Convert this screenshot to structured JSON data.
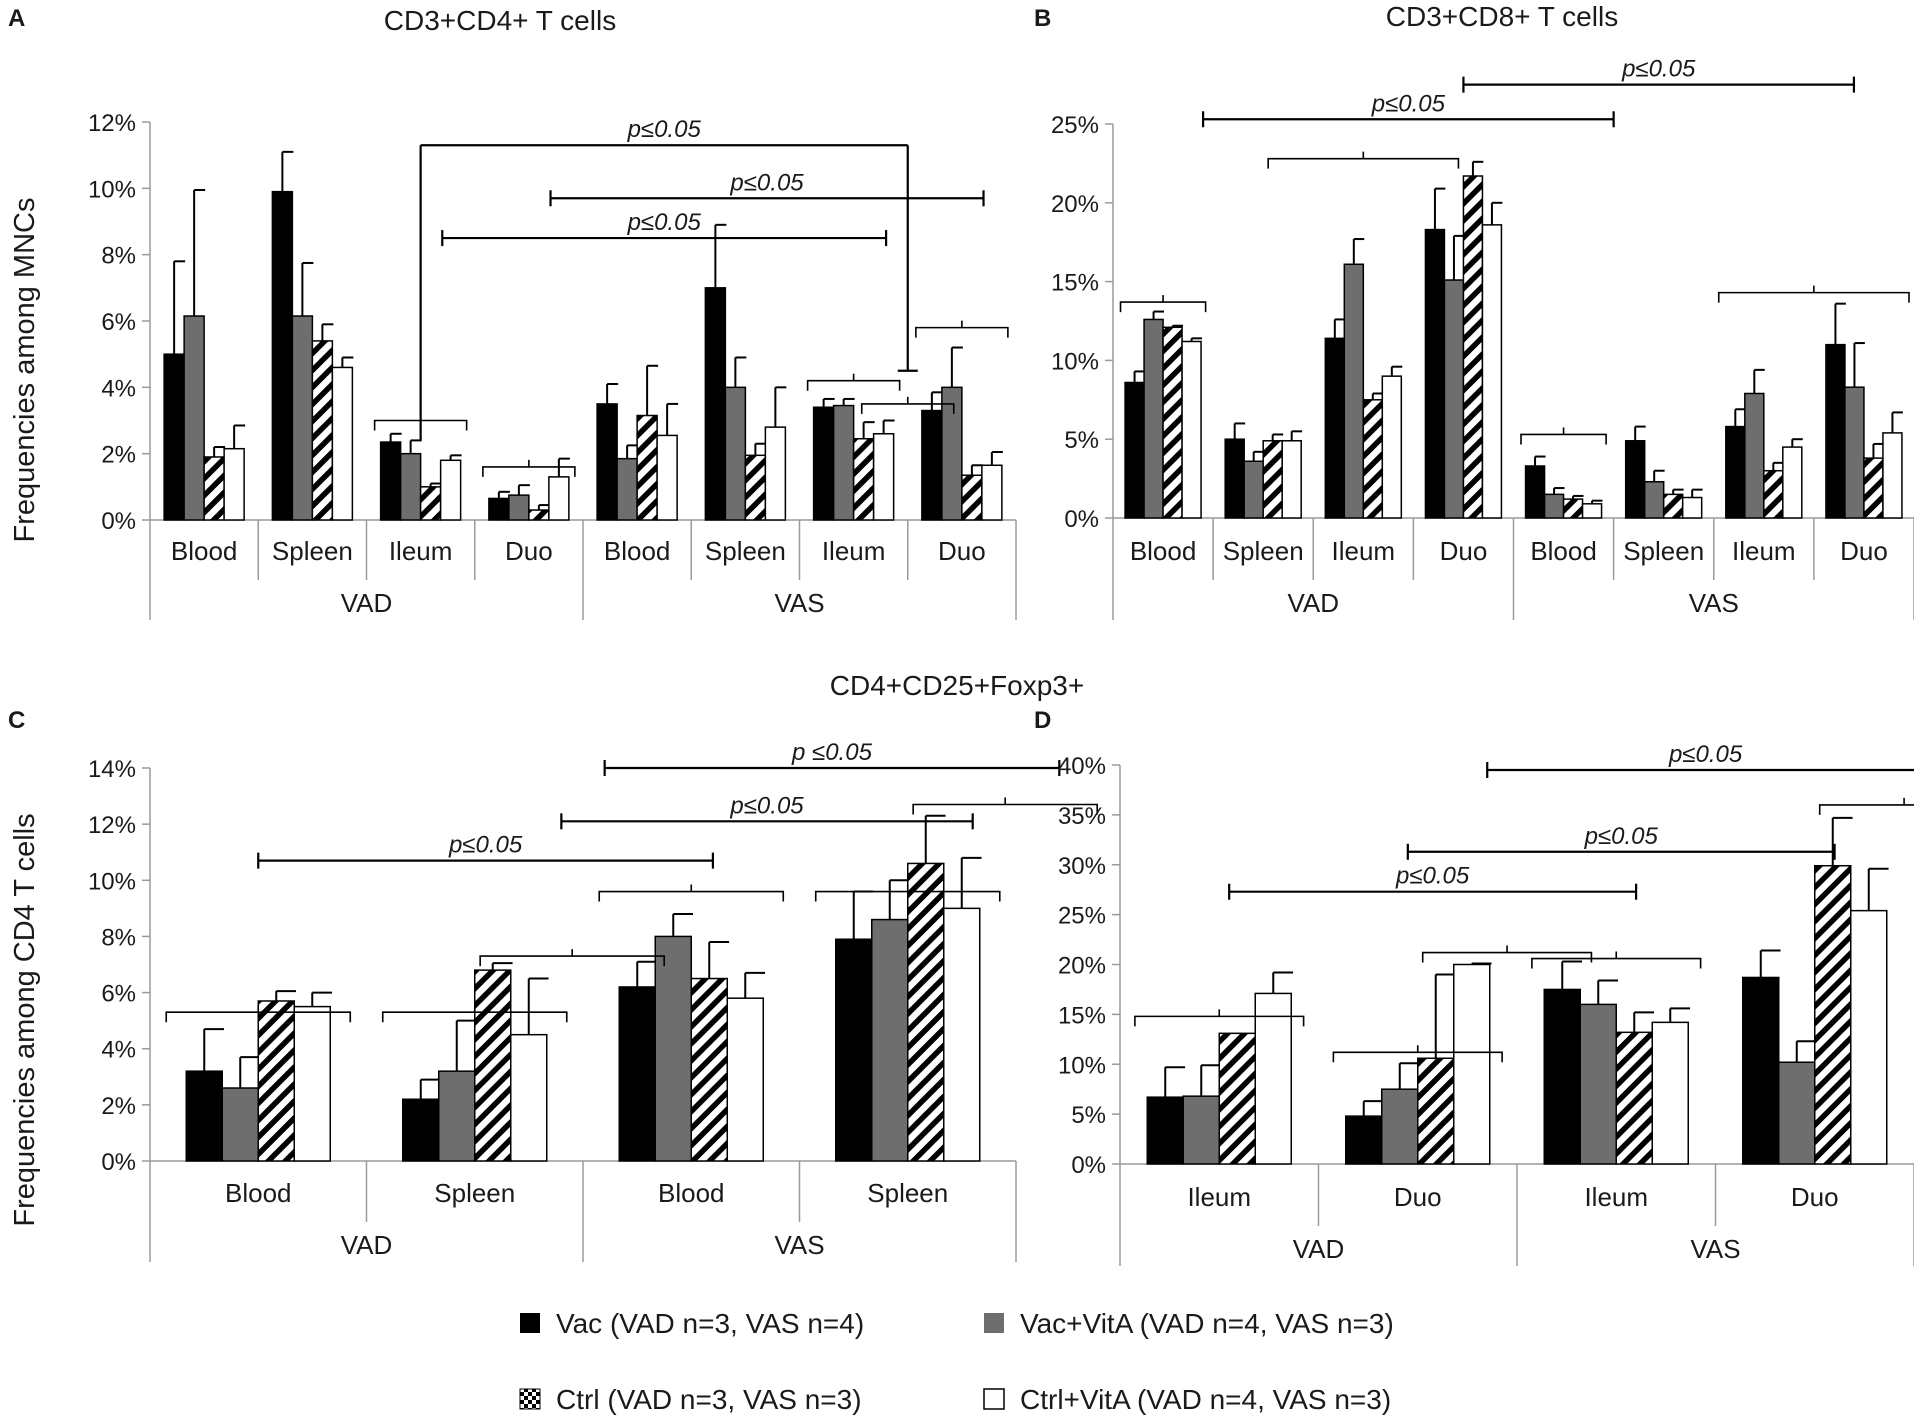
{
  "figure_title": "CD4+CD25+Foxp3+",
  "series_names": [
    "Vac",
    "Vac+VitA",
    "Ctrl",
    "Ctrl+VitA"
  ],
  "colors": {
    "vac": "#000000",
    "vac_vita": "#6e6e6e",
    "ctrl_fill": "#ffffff",
    "ctrl_stripe": "#000000",
    "ctrl_vita": "#ffffff",
    "axis": "#9a9a9a",
    "ink": "#1a1a1a"
  },
  "legend": [
    {
      "label": "Vac  (VAD n=3, VAS n=4)",
      "icon": "solid-black-square"
    },
    {
      "label": "Vac+VitA (VAD n=4, VAS n=3)",
      "icon": "solid-gray-square"
    },
    {
      "label": "Ctrl (VAD n=3, VAS n=3)",
      "icon": "checkered-square"
    },
    {
      "label": "Ctrl+VitA (VAD n=4, VAS n=3)",
      "icon": "open-white-square"
    }
  ],
  "chart_data": [
    {
      "panel": "A",
      "type": "bar",
      "title": "CD3+CD4+ T cells",
      "ylabel": "Frequencies among MNCs",
      "ylim": [
        0,
        12
      ],
      "yticks": [
        0,
        2,
        4,
        6,
        8,
        10,
        12
      ],
      "tick_labels": [
        "0%",
        "2%",
        "4%",
        "6%",
        "8%",
        "10%",
        "12%"
      ],
      "categories": [
        "Blood",
        "Spleen",
        "Ileum",
        "Duo",
        "Blood",
        "Spleen",
        "Ileum",
        "Duo"
      ],
      "groups": [
        "VAD",
        "VAS"
      ],
      "series": [
        {
          "name": "Vac",
          "values": [
            5.0,
            9.9,
            2.35,
            0.65,
            3.5,
            7.0,
            3.4,
            3.3
          ],
          "errors": [
            2.8,
            1.2,
            0.25,
            0.2,
            0.6,
            1.9,
            0.25,
            0.55
          ]
        },
        {
          "name": "Vac+VitA",
          "values": [
            6.15,
            6.15,
            2.0,
            0.75,
            1.85,
            4.0,
            3.45,
            4.0
          ],
          "errors": [
            3.8,
            1.6,
            0.4,
            0.3,
            0.4,
            0.9,
            0.2,
            1.2
          ]
        },
        {
          "name": "Ctrl",
          "values": [
            1.9,
            5.4,
            1.0,
            0.3,
            3.15,
            1.95,
            2.45,
            1.35
          ],
          "errors": [
            0.3,
            0.5,
            0.1,
            0.15,
            1.5,
            0.35,
            0.5,
            0.3
          ]
        },
        {
          "name": "Ctrl+VitA",
          "values": [
            2.15,
            4.6,
            1.8,
            1.3,
            2.55,
            2.8,
            2.6,
            1.65
          ],
          "errors": [
            0.7,
            0.3,
            0.15,
            0.55,
            0.95,
            1.2,
            0.4,
            0.4
          ]
        }
      ],
      "annotations": [
        "p≤0.05",
        "p≤0.05",
        "p≤0.05"
      ]
    },
    {
      "panel": "B",
      "type": "bar",
      "title": "CD3+CD8+ T cells",
      "ylabel": "",
      "ylim": [
        0,
        25
      ],
      "yticks": [
        0,
        5,
        10,
        15,
        20,
        25
      ],
      "tick_labels": [
        "0%",
        "5%",
        "10%",
        "15%",
        "20%",
        "25%"
      ],
      "categories": [
        "Blood",
        "Spleen",
        "Ileum",
        "Duo",
        "Blood",
        "Spleen",
        "Ileum",
        "Duo"
      ],
      "groups": [
        "VAD",
        "VAS"
      ],
      "series": [
        {
          "name": "Vac",
          "values": [
            8.6,
            5.0,
            11.4,
            18.3,
            3.3,
            4.9,
            5.8,
            11.0
          ],
          "errors": [
            0.7,
            1.0,
            1.2,
            2.6,
            0.6,
            0.9,
            1.1,
            2.6
          ]
        },
        {
          "name": "Vac+VitA",
          "values": [
            12.6,
            3.6,
            16.1,
            15.1,
            1.5,
            2.3,
            7.9,
            8.3
          ],
          "errors": [
            0.5,
            0.6,
            1.6,
            2.8,
            0.4,
            0.7,
            1.5,
            2.8
          ]
        },
        {
          "name": "Ctrl",
          "values": [
            12.1,
            4.9,
            7.5,
            21.7,
            1.2,
            1.5,
            3.0,
            3.8
          ],
          "errors": [
            0.1,
            0.4,
            0.4,
            0.9,
            0.2,
            0.3,
            0.5,
            0.9
          ]
        },
        {
          "name": "Ctrl+VitA",
          "values": [
            11.2,
            4.9,
            9.0,
            18.6,
            0.9,
            1.3,
            4.5,
            5.4
          ],
          "errors": [
            0.2,
            0.6,
            0.6,
            1.4,
            0.2,
            0.5,
            0.5,
            1.3
          ]
        }
      ],
      "annotations": [
        "p≤0.05",
        "p≤0.05"
      ]
    },
    {
      "panel": "C",
      "type": "bar",
      "title": "",
      "ylabel": "Frequencies among CD4 T cells",
      "ylim": [
        0,
        14
      ],
      "yticks": [
        0,
        2,
        4,
        6,
        8,
        10,
        12,
        14
      ],
      "tick_labels": [
        "0%",
        "2%",
        "4%",
        "6%",
        "8%",
        "10%",
        "12%",
        "14%"
      ],
      "categories": [
        "Blood",
        "Spleen",
        "Blood",
        "Spleen"
      ],
      "groups": [
        "VAD",
        "VAS"
      ],
      "series": [
        {
          "name": "Vac",
          "values": [
            3.2,
            2.2,
            6.2,
            7.9
          ],
          "errors": [
            1.5,
            0.7,
            0.9,
            1.7
          ]
        },
        {
          "name": "Vac+VitA",
          "values": [
            2.6,
            3.2,
            8.0,
            8.6
          ],
          "errors": [
            1.1,
            1.8,
            0.8,
            1.4
          ]
        },
        {
          "name": "Ctrl",
          "values": [
            5.7,
            6.8,
            6.5,
            10.6
          ],
          "errors": [
            0.35,
            0.25,
            1.3,
            1.7
          ]
        },
        {
          "name": "Ctrl+VitA",
          "values": [
            5.5,
            4.5,
            5.8,
            9.0
          ],
          "errors": [
            0.5,
            2.0,
            0.9,
            1.8
          ]
        }
      ],
      "annotations": [
        "p ≤0.05",
        "p≤0.05",
        "p≤0.05"
      ]
    },
    {
      "panel": "D",
      "type": "bar",
      "title": "",
      "ylabel": "",
      "ylim": [
        0,
        40
      ],
      "yticks": [
        0,
        5,
        10,
        15,
        20,
        25,
        30,
        35,
        40
      ],
      "tick_labels": [
        "0%",
        "5%",
        "10%",
        "15%",
        "20%",
        "25%",
        "30%",
        "35%",
        "40%"
      ],
      "categories": [
        "Ileum",
        "Duo",
        "Ileum",
        "Duo"
      ],
      "groups": [
        "VAD",
        "VAS"
      ],
      "series": [
        {
          "name": "Vac",
          "values": [
            6.7,
            4.8,
            17.5,
            18.7
          ],
          "errors": [
            3.0,
            1.5,
            2.8,
            2.7
          ]
        },
        {
          "name": "Vac+VitA",
          "values": [
            6.8,
            7.5,
            16.0,
            10.2
          ],
          "errors": [
            3.1,
            2.6,
            2.4,
            2.1
          ]
        },
        {
          "name": "Ctrl",
          "values": [
            13.1,
            10.6,
            13.2,
            29.9
          ],
          "errors": [
            0,
            8.4,
            2.0,
            4.8
          ]
        },
        {
          "name": "Ctrl+VitA",
          "values": [
            17.1,
            20.0,
            14.2,
            25.4
          ],
          "errors": [
            2.1,
            0.1,
            1.4,
            4.2
          ]
        }
      ],
      "annotations": [
        "p≤0.05",
        "p≤0.05",
        "p≤0.05"
      ]
    }
  ]
}
